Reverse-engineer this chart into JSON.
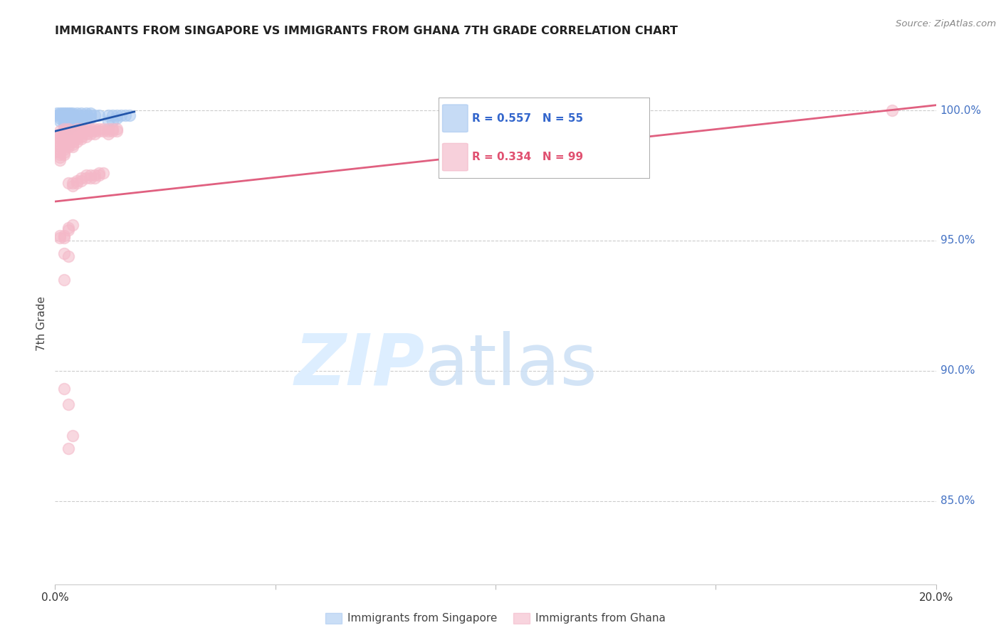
{
  "title": "IMMIGRANTS FROM SINGAPORE VS IMMIGRANTS FROM GHANA 7TH GRADE CORRELATION CHART",
  "source": "Source: ZipAtlas.com",
  "ylabel": "7th Grade",
  "ytick_labels": [
    "100.0%",
    "95.0%",
    "90.0%",
    "85.0%"
  ],
  "ytick_values": [
    1.0,
    0.95,
    0.9,
    0.85
  ],
  "xlim": [
    0.0,
    0.2
  ],
  "ylim": [
    0.818,
    1.018
  ],
  "singapore_color": "#a8c8f0",
  "ghana_color": "#f4b8c8",
  "singapore_line_color": "#2255aa",
  "ghana_line_color": "#e06080",
  "singapore_points": [
    [
      0.0005,
      0.999
    ],
    [
      0.001,
      0.999
    ],
    [
      0.0015,
      0.999
    ],
    [
      0.002,
      0.999
    ],
    [
      0.0025,
      0.999
    ],
    [
      0.003,
      0.999
    ],
    [
      0.0035,
      0.999
    ],
    [
      0.004,
      0.999
    ],
    [
      0.005,
      0.999
    ],
    [
      0.006,
      0.999
    ],
    [
      0.007,
      0.999
    ],
    [
      0.008,
      0.999
    ],
    [
      0.0005,
      0.998
    ],
    [
      0.001,
      0.998
    ],
    [
      0.0015,
      0.998
    ],
    [
      0.002,
      0.998
    ],
    [
      0.003,
      0.998
    ],
    [
      0.004,
      0.998
    ],
    [
      0.005,
      0.998
    ],
    [
      0.006,
      0.998
    ],
    [
      0.007,
      0.998
    ],
    [
      0.008,
      0.998
    ],
    [
      0.009,
      0.998
    ],
    [
      0.01,
      0.998
    ],
    [
      0.012,
      0.998
    ],
    [
      0.013,
      0.998
    ],
    [
      0.014,
      0.998
    ],
    [
      0.015,
      0.998
    ],
    [
      0.016,
      0.998
    ],
    [
      0.017,
      0.998
    ],
    [
      0.001,
      0.997
    ],
    [
      0.002,
      0.997
    ],
    [
      0.003,
      0.997
    ],
    [
      0.004,
      0.997
    ],
    [
      0.005,
      0.997
    ],
    [
      0.006,
      0.997
    ],
    [
      0.007,
      0.997
    ],
    [
      0.008,
      0.997
    ],
    [
      0.014,
      0.997
    ],
    [
      0.001,
      0.996
    ],
    [
      0.002,
      0.996
    ],
    [
      0.003,
      0.996
    ],
    [
      0.004,
      0.996
    ],
    [
      0.005,
      0.996
    ],
    [
      0.006,
      0.996
    ],
    [
      0.012,
      0.996
    ],
    [
      0.013,
      0.996
    ],
    [
      0.002,
      0.995
    ],
    [
      0.003,
      0.995
    ],
    [
      0.004,
      0.995
    ],
    [
      0.005,
      0.995
    ],
    [
      0.002,
      0.994
    ],
    [
      0.003,
      0.994
    ],
    [
      0.004,
      0.994
    ],
    [
      0.003,
      0.993
    ]
  ],
  "ghana_points": [
    [
      0.001,
      0.992
    ],
    [
      0.001,
      0.991
    ],
    [
      0.001,
      0.99
    ],
    [
      0.001,
      0.989
    ],
    [
      0.001,
      0.988
    ],
    [
      0.001,
      0.987
    ],
    [
      0.001,
      0.986
    ],
    [
      0.001,
      0.985
    ],
    [
      0.001,
      0.984
    ],
    [
      0.001,
      0.983
    ],
    [
      0.001,
      0.982
    ],
    [
      0.001,
      0.981
    ],
    [
      0.002,
      0.993
    ],
    [
      0.002,
      0.992
    ],
    [
      0.002,
      0.991
    ],
    [
      0.002,
      0.99
    ],
    [
      0.002,
      0.989
    ],
    [
      0.002,
      0.988
    ],
    [
      0.002,
      0.987
    ],
    [
      0.002,
      0.986
    ],
    [
      0.002,
      0.985
    ],
    [
      0.002,
      0.984
    ],
    [
      0.002,
      0.983
    ],
    [
      0.003,
      0.993
    ],
    [
      0.003,
      0.992
    ],
    [
      0.003,
      0.991
    ],
    [
      0.003,
      0.99
    ],
    [
      0.003,
      0.989
    ],
    [
      0.003,
      0.988
    ],
    [
      0.003,
      0.987
    ],
    [
      0.003,
      0.986
    ],
    [
      0.004,
      0.992
    ],
    [
      0.004,
      0.991
    ],
    [
      0.004,
      0.99
    ],
    [
      0.004,
      0.989
    ],
    [
      0.004,
      0.988
    ],
    [
      0.004,
      0.987
    ],
    [
      0.004,
      0.986
    ],
    [
      0.005,
      0.993
    ],
    [
      0.005,
      0.992
    ],
    [
      0.005,
      0.991
    ],
    [
      0.005,
      0.99
    ],
    [
      0.005,
      0.989
    ],
    [
      0.005,
      0.988
    ],
    [
      0.006,
      0.993
    ],
    [
      0.006,
      0.992
    ],
    [
      0.006,
      0.991
    ],
    [
      0.006,
      0.99
    ],
    [
      0.006,
      0.989
    ],
    [
      0.007,
      0.993
    ],
    [
      0.007,
      0.992
    ],
    [
      0.007,
      0.991
    ],
    [
      0.007,
      0.99
    ],
    [
      0.008,
      0.993
    ],
    [
      0.008,
      0.992
    ],
    [
      0.008,
      0.991
    ],
    [
      0.009,
      0.993
    ],
    [
      0.009,
      0.992
    ],
    [
      0.009,
      0.991
    ],
    [
      0.01,
      0.993
    ],
    [
      0.01,
      0.992
    ],
    [
      0.011,
      0.993
    ],
    [
      0.011,
      0.992
    ],
    [
      0.012,
      0.993
    ],
    [
      0.012,
      0.992
    ],
    [
      0.012,
      0.991
    ],
    [
      0.013,
      0.993
    ],
    [
      0.013,
      0.992
    ],
    [
      0.014,
      0.993
    ],
    [
      0.014,
      0.992
    ],
    [
      0.003,
      0.972
    ],
    [
      0.004,
      0.972
    ],
    [
      0.004,
      0.971
    ],
    [
      0.005,
      0.973
    ],
    [
      0.005,
      0.972
    ],
    [
      0.006,
      0.974
    ],
    [
      0.006,
      0.973
    ],
    [
      0.007,
      0.975
    ],
    [
      0.007,
      0.974
    ],
    [
      0.008,
      0.975
    ],
    [
      0.008,
      0.974
    ],
    [
      0.009,
      0.975
    ],
    [
      0.009,
      0.974
    ],
    [
      0.01,
      0.976
    ],
    [
      0.01,
      0.975
    ],
    [
      0.011,
      0.976
    ],
    [
      0.001,
      0.952
    ],
    [
      0.001,
      0.951
    ],
    [
      0.002,
      0.952
    ],
    [
      0.002,
      0.951
    ],
    [
      0.003,
      0.955
    ],
    [
      0.003,
      0.954
    ],
    [
      0.004,
      0.956
    ],
    [
      0.002,
      0.945
    ],
    [
      0.003,
      0.944
    ],
    [
      0.002,
      0.935
    ],
    [
      0.002,
      0.893
    ],
    [
      0.003,
      0.887
    ],
    [
      0.004,
      0.875
    ],
    [
      0.003,
      0.87
    ],
    [
      0.19,
      1.0
    ]
  ],
  "singapore_trendline": {
    "x": [
      0.0,
      0.018
    ],
    "y": [
      0.992,
      0.9995
    ]
  },
  "ghana_trendline": {
    "x": [
      0.0,
      0.2
    ],
    "y": [
      0.965,
      1.002
    ]
  }
}
